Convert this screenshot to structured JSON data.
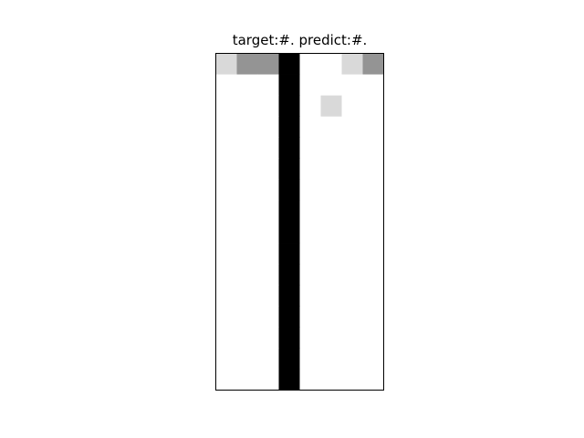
{
  "chart_data": {
    "type": "heatmap",
    "title": "target:#. predict:#.",
    "xlabel": "",
    "ylabel": "",
    "rows": 16,
    "cols": 8,
    "grid": false,
    "colormap": "gray_r",
    "value_range": [
      0,
      1
    ],
    "cells": [
      [
        0.15,
        0.42,
        0.42,
        1.0,
        0.0,
        0.0,
        0.15,
        0.42
      ],
      [
        0.0,
        0.0,
        0.0,
        1.0,
        0.0,
        0.0,
        0.0,
        0.0
      ],
      [
        0.0,
        0.0,
        0.0,
        1.0,
        0.0,
        0.15,
        0.0,
        0.0
      ],
      [
        0.0,
        0.0,
        0.0,
        1.0,
        0.0,
        0.0,
        0.0,
        0.0
      ],
      [
        0.0,
        0.0,
        0.0,
        1.0,
        0.0,
        0.0,
        0.0,
        0.0
      ],
      [
        0.0,
        0.0,
        0.0,
        1.0,
        0.0,
        0.0,
        0.0,
        0.0
      ],
      [
        0.0,
        0.0,
        0.0,
        1.0,
        0.0,
        0.0,
        0.0,
        0.0
      ],
      [
        0.0,
        0.0,
        0.0,
        1.0,
        0.0,
        0.0,
        0.0,
        0.0
      ],
      [
        0.0,
        0.0,
        0.0,
        1.0,
        0.0,
        0.0,
        0.0,
        0.0
      ],
      [
        0.0,
        0.0,
        0.0,
        1.0,
        0.0,
        0.0,
        0.0,
        0.0
      ],
      [
        0.0,
        0.0,
        0.0,
        1.0,
        0.0,
        0.0,
        0.0,
        0.0
      ],
      [
        0.0,
        0.0,
        0.0,
        1.0,
        0.0,
        0.0,
        0.0,
        0.0
      ],
      [
        0.0,
        0.0,
        0.0,
        1.0,
        0.0,
        0.0,
        0.0,
        0.0
      ],
      [
        0.0,
        0.0,
        0.0,
        1.0,
        0.0,
        0.0,
        0.0,
        0.0
      ],
      [
        0.0,
        0.0,
        0.0,
        1.0,
        0.0,
        0.0,
        0.0,
        0.0
      ],
      [
        0.0,
        0.0,
        0.0,
        1.0,
        0.0,
        0.0,
        0.0,
        0.0
      ]
    ]
  }
}
